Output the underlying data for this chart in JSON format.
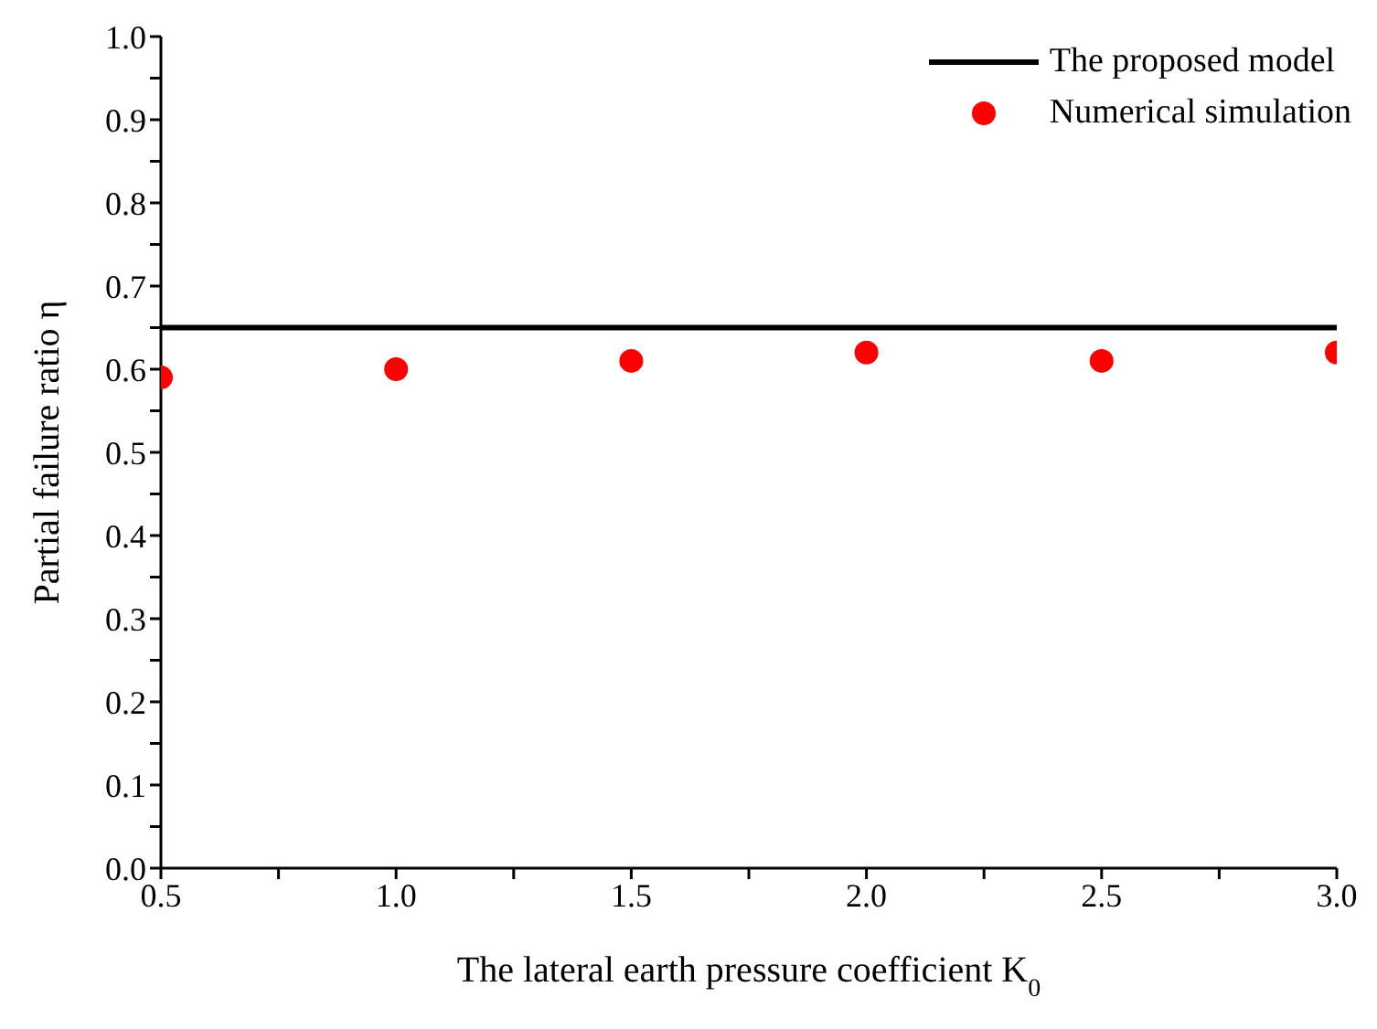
{
  "chart_data": {
    "type": "scatter",
    "xlabel": "The lateral earth pressure coefficient K$_{0}$",
    "ylabel": "Partial failure ratio η",
    "xlim": [
      0.5,
      3.0
    ],
    "xticks": [
      {
        "value": 0.5,
        "label": "0.5"
      },
      {
        "value": 0.75,
        "label": null
      },
      {
        "value": 1.0,
        "label": "1.0"
      },
      {
        "value": 1.25,
        "label": null
      },
      {
        "value": 1.5,
        "label": "1.5"
      },
      {
        "value": 1.75,
        "label": null
      },
      {
        "value": 2.0,
        "label": "2.0"
      },
      {
        "value": 2.25,
        "label": null
      },
      {
        "value": 2.5,
        "label": "2.5"
      },
      {
        "value": 2.75,
        "label": null
      },
      {
        "value": 3.0,
        "label": "3.0"
      }
    ],
    "ylim": [
      0,
      1.0
    ],
    "yticks": [
      {
        "value": 0,
        "label": "0.0"
      },
      {
        "value": 0.05,
        "label": null
      },
      {
        "value": 0.1,
        "label": "0.1"
      },
      {
        "value": 0.15,
        "label": null
      },
      {
        "value": 0.2,
        "label": "0.2"
      },
      {
        "value": 0.25,
        "label": null
      },
      {
        "value": 0.3,
        "label": "0.3"
      },
      {
        "value": 0.35,
        "label": null
      },
      {
        "value": 0.4,
        "label": "0.4"
      },
      {
        "value": 0.45,
        "label": null
      },
      {
        "value": 0.5,
        "label": "0.5"
      },
      {
        "value": 0.55,
        "label": null
      },
      {
        "value": 0.6,
        "label": "0.6"
      },
      {
        "value": 0.65,
        "label": null
      },
      {
        "value": 0.7,
        "label": "0.7"
      },
      {
        "value": 0.75,
        "label": null
      },
      {
        "value": 0.8,
        "label": "0.8"
      },
      {
        "value": 0.85,
        "label": null
      },
      {
        "value": 0.9,
        "label": "0.9"
      },
      {
        "value": 0.95,
        "label": null
      },
      {
        "value": 1.0,
        "label": "1.0"
      }
    ],
    "grid": false,
    "legend": "top right",
    "series": [
      {
        "name": "The proposed model",
        "type": "line",
        "color": "#000000",
        "marker": "none",
        "line_style": "solid",
        "x": [
          0.5,
          3.0
        ],
        "values": [
          0.65,
          0.65
        ]
      },
      {
        "name": "Numerical simulation",
        "color": "#ff0000",
        "marker": "circle",
        "x": [
          0.5,
          1.0,
          1.5,
          2.0,
          2.5,
          3.0
        ],
        "values": [
          0.59,
          0.6,
          0.61,
          0.62,
          0.61,
          0.62
        ]
      }
    ]
  }
}
